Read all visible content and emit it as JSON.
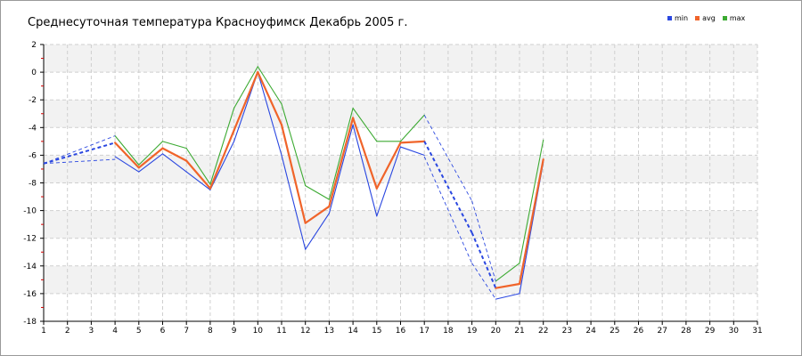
{
  "chart_data": {
    "type": "line",
    "title": "Среднесуточная температура Красноуфимск  Декабрь 2005 г.",
    "xlabel": "",
    "ylabel": "",
    "x": [
      1,
      2,
      3,
      4,
      5,
      6,
      7,
      8,
      9,
      10,
      11,
      12,
      13,
      14,
      15,
      16,
      17,
      18,
      19,
      20,
      21,
      22,
      23,
      24,
      25,
      26,
      27,
      28,
      29,
      30,
      31
    ],
    "xlim": [
      1,
      31
    ],
    "ylim": [
      -18,
      2
    ],
    "yticks": [
      2,
      0,
      -2,
      -4,
      -6,
      -8,
      -10,
      -12,
      -14,
      -16,
      -18
    ],
    "grid": true,
    "legend_position": "top-right",
    "series": [
      {
        "name": "min",
        "color": "#2a47e0",
        "values": [
          -6.6,
          null,
          null,
          -6.1,
          -7.2,
          -5.9,
          -7.2,
          -8.5,
          -5.0,
          0.0,
          -6.0,
          -12.8,
          -10.2,
          -3.8,
          -10.4,
          -5.4,
          -6.0,
          null,
          null,
          -16.4,
          -16.0,
          -6.5,
          null,
          null,
          null,
          null,
          null,
          null,
          null,
          null,
          null
        ],
        "gap_values": [
          -6.6,
          -6.3,
          -6.1,
          -13.8,
          -16.4
        ]
      },
      {
        "name": "avg",
        "color": "#f0642a",
        "values": [
          -6.6,
          null,
          null,
          -5.1,
          -6.9,
          -5.5,
          -6.4,
          -8.4,
          -4.2,
          0.0,
          -3.8,
          -10.9,
          -9.7,
          -3.3,
          -8.4,
          -5.1,
          -5.0,
          null,
          null,
          -15.6,
          -15.3,
          -6.3,
          null,
          null,
          null,
          null,
          null,
          null,
          null,
          null,
          null
        ],
        "gap_values": [
          -6.6,
          -5.1,
          -5.0,
          -11.6,
          -15.6
        ]
      },
      {
        "name": "max",
        "color": "#3caa32",
        "values": [
          -6.6,
          null,
          null,
          -4.6,
          -6.7,
          -5.0,
          -5.5,
          -8.1,
          -2.6,
          0.4,
          -2.3,
          -8.2,
          -9.2,
          -2.6,
          -5.0,
          -5.0,
          -3.1,
          null,
          null,
          -15.1,
          -13.8,
          -4.9,
          null,
          null,
          null,
          null,
          null,
          null,
          null,
          null,
          null
        ],
        "gap_values": [
          -6.6,
          -4.6,
          -3.1,
          -9.3,
          -15.1
        ]
      }
    ]
  }
}
